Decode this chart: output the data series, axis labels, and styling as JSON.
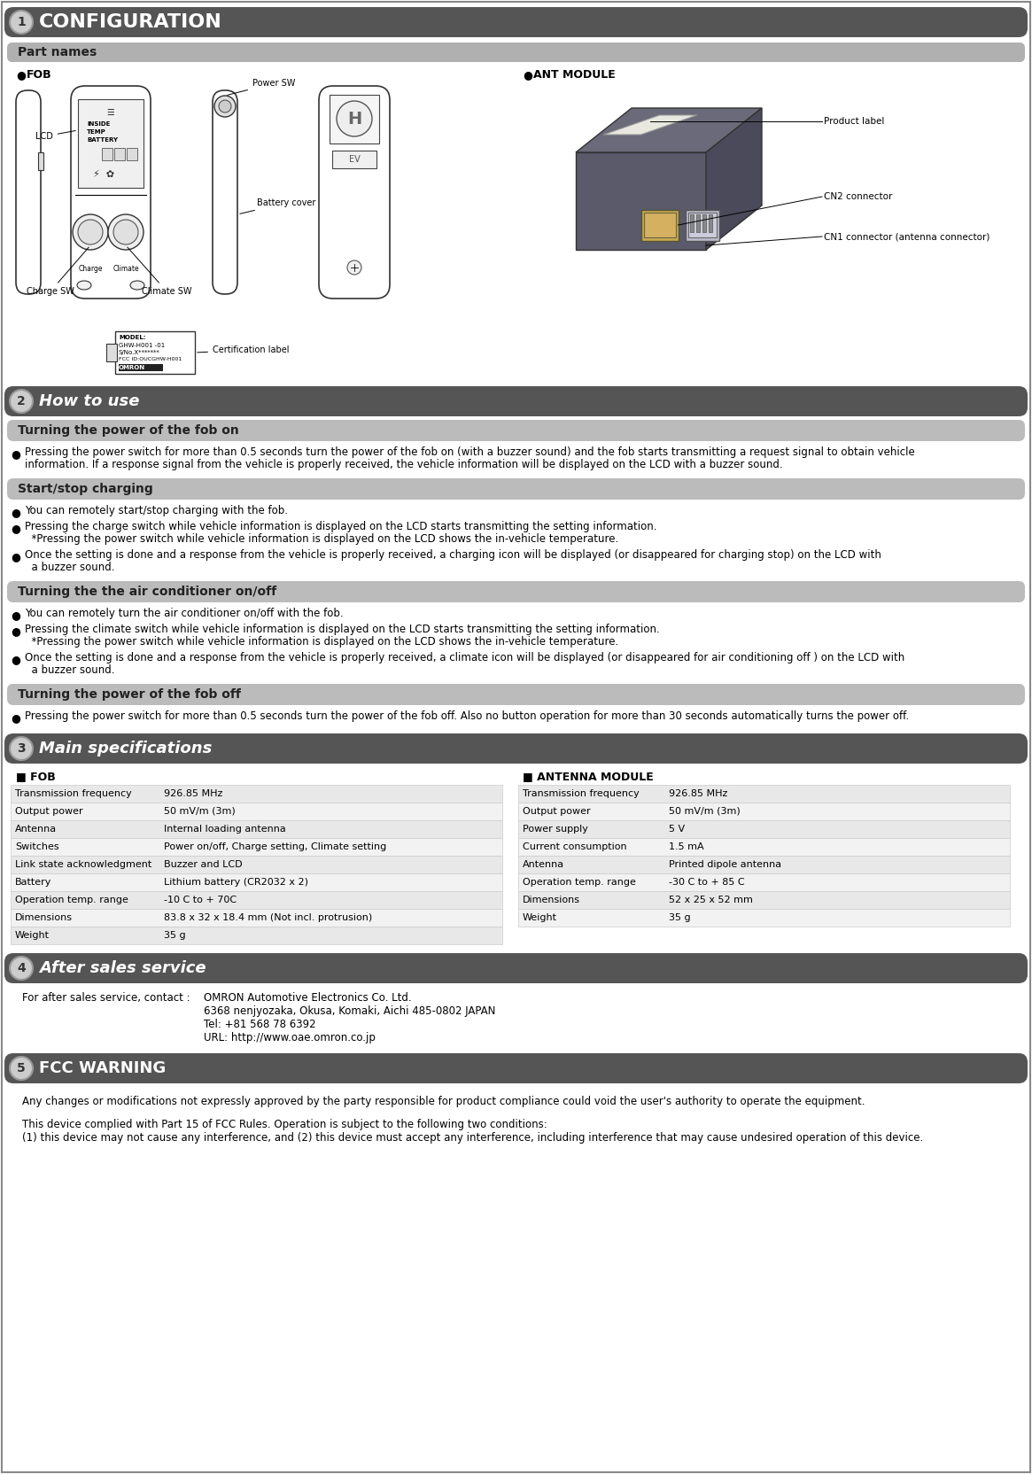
{
  "title1": "CONFIGURATION",
  "title2": "How to use",
  "title3": "Main specifications",
  "title4": "After sales service",
  "title5": "FCC WARNING",
  "section1_sub": "Part names",
  "fob_label": "FOB",
  "ant_label": "ANT MODULE",
  "part_labels": {
    "LCD": "LCD",
    "Power_SW": "Power SW",
    "Battery_cover": "Battery cover",
    "Charge_SW": "Charge SW",
    "Climate_SW": "Climate SW",
    "Certification_label": "Certification label",
    "CN2_connector": "CN2 connector",
    "CN1_connector": "CN1 connector (antenna connector)",
    "Product_label": "Product label"
  },
  "how_to_use": {
    "sub1": "Turning the power of the fob on",
    "text1_lines": [
      "Pressing the power switch for more than 0.5 seconds turn the power of the fob on (with a buzzer sound) and the fob starts transmitting a request signal to obtain vehicle",
      "information. If a response signal from the vehicle is properly received, the vehicle information will be displayed on the LCD with a buzzer sound."
    ],
    "sub2": "Start/stop charging",
    "text2a": "You can remotely start/stop charging with the fob.",
    "text2b_lines": [
      "Pressing the charge switch while vehicle information is displayed on the LCD starts transmitting the setting information.",
      "  *Pressing the power switch while vehicle information is displayed on the LCD shows the in-vehicle temperature."
    ],
    "text2c_lines": [
      "Once the setting is done and a response from the vehicle is properly received, a charging icon will be displayed (or disappeared for charging stop) on the LCD with",
      "  a buzzer sound."
    ],
    "sub3": "Turning the the air conditioner on/off",
    "text3a": "You can remotely turn the air conditioner on/off with the fob.",
    "text3b_lines": [
      "Pressing the climate switch while vehicle information is displayed on the LCD starts transmitting the setting information.",
      "  *Pressing the power switch while vehicle information is displayed on the LCD shows the in-vehicle temperature."
    ],
    "text3c_lines": [
      "Once the setting is done and a response from the vehicle is properly received, a climate icon will be displayed (or disappeared for air conditioning off ) on the LCD with",
      "  a buzzer sound."
    ],
    "sub4": "Turning the power of the fob off",
    "text4": "Pressing the power switch for more than 0.5 seconds turn the power of the fob off. Also no button operation for more than 30 seconds automatically turns the power off."
  },
  "specs": {
    "fob_title": "FOB",
    "fob_rows": [
      [
        "Transmission frequency",
        "926.85 MHz"
      ],
      [
        "Output power",
        "50 mV/m (3m)"
      ],
      [
        "Antenna",
        "Internal loading antenna"
      ],
      [
        "Switches",
        "Power on/off, Charge setting, Climate setting"
      ],
      [
        "Link state acknowledgment",
        "Buzzer and LCD"
      ],
      [
        "Battery",
        "Lithium battery (CR2032 x 2)"
      ],
      [
        "Operation temp. range",
        "-10 C to + 70C"
      ],
      [
        "Dimensions",
        "83.8 x 32 x 18.4 mm (Not incl. protrusion)"
      ],
      [
        "Weight",
        "35 g"
      ]
    ],
    "ant_title": "ANTENNA MODULE",
    "ant_rows": [
      [
        "Transmission frequency",
        "926.85 MHz"
      ],
      [
        "Output power",
        "50 mV/m (3m)"
      ],
      [
        "Power supply",
        "5 V"
      ],
      [
        "Current consumption",
        "1.5 mA"
      ],
      [
        "Antenna",
        "Printed dipole antenna"
      ],
      [
        "Operation temp. range",
        "-30 C to + 85 C"
      ],
      [
        "Dimensions",
        "52 x 25 x 52 mm"
      ],
      [
        "Weight",
        "35 g"
      ]
    ]
  },
  "after_sales": {
    "label": "For after sales service, contact :",
    "company": "OMRON Automotive Electronics Co. Ltd.",
    "address": "6368 nenjyozaka, Okusa, Komaki, Aichi 485-0802 JAPAN",
    "tel": "Tel: +81 568 78 6392",
    "url": "URL: http://www.oae.omron.co.jp"
  },
  "fcc_text1": "Any changes or modifications not expressly approved by the party responsible for product compliance could void the user's authority to operate the equipment.",
  "fcc_text2a": "This device complied with Part 15 of FCC Rules. Operation is subject to the following two conditions:",
  "fcc_text2b": "(1) this device may not cause any interference, and (2) this device must accept any interference, including interference that may cause undesired operation of this device.",
  "colors": {
    "dark_header": "#555555",
    "sub_header": "#aaaaaa",
    "light_sub": "#c0c0c0",
    "border": "#888888",
    "text_dark": "#111111",
    "text_white": "#ffffff",
    "bg_white": "#ffffff",
    "row_even": "#e8e8e8",
    "row_odd": "#f2f2f2"
  }
}
